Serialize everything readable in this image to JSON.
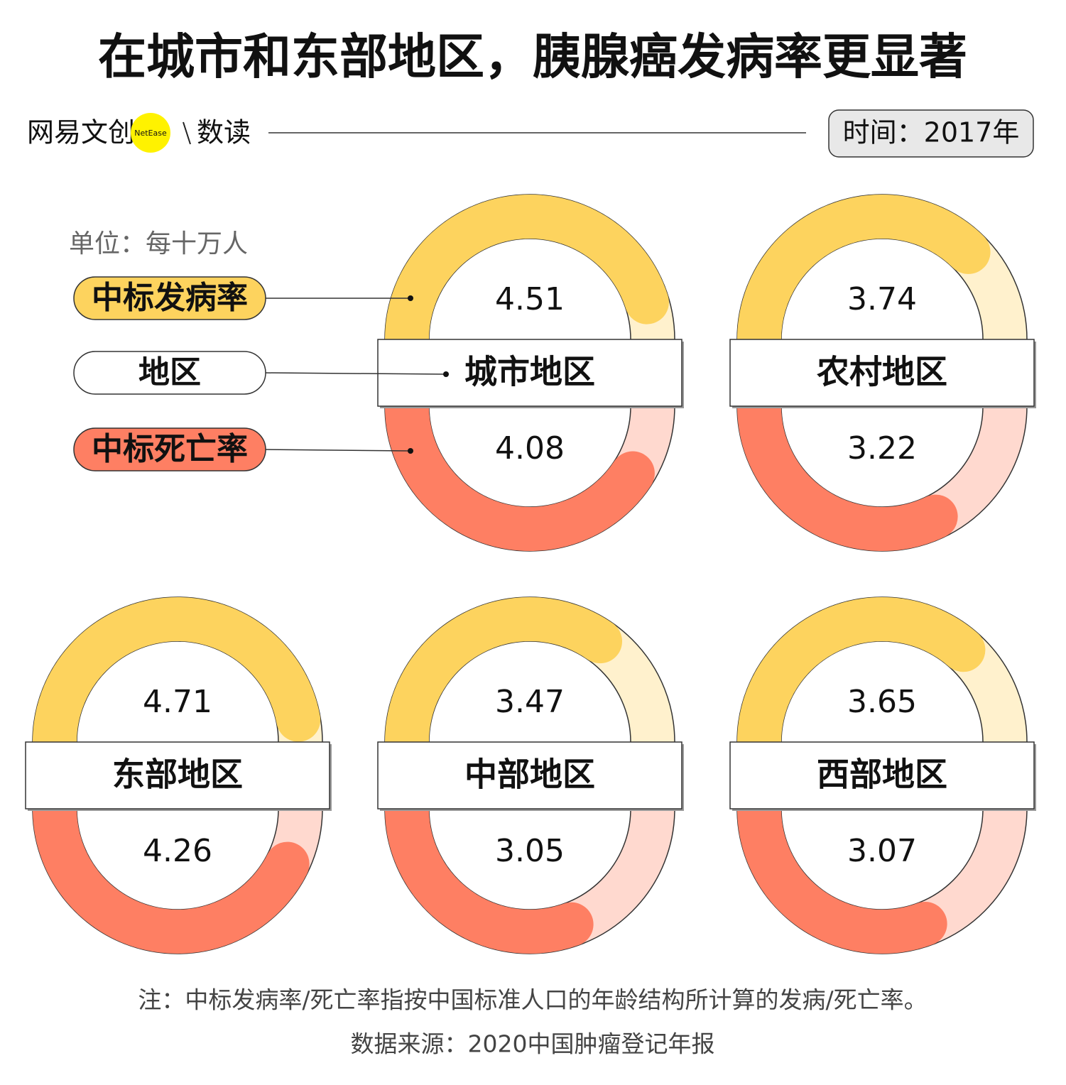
{
  "header": {
    "title": "在城市和东部地区，胰腺癌发病率更显著",
    "brand": "网易文创",
    "badge": "NetEase",
    "section": "数读",
    "time": "时间：2017年"
  },
  "unit": "单位：每十万人",
  "legend": [
    {
      "label": "中标发病率",
      "color": "#fdd35e"
    },
    {
      "label": "地区",
      "color": "#ffffff"
    },
    {
      "label": "中标死亡率",
      "color": "#fe7f63"
    }
  ],
  "chart_data": [
    {
      "type": "donut",
      "title": "城市地区",
      "values": [
        4.51,
        4.08
      ],
      "colors": [
        "#fdd35e",
        "#fe7f63"
      ],
      "track_colors": [
        "#fff1cd",
        "#ffd9cf"
      ],
      "ylim": [
        0,
        5
      ]
    },
    {
      "type": "donut",
      "title": "农村地区",
      "values": [
        3.74,
        3.22
      ],
      "colors": [
        "#fdd35e",
        "#fe7f63"
      ],
      "track_colors": [
        "#fff1cd",
        "#ffd9cf"
      ],
      "ylim": [
        0,
        5
      ]
    },
    {
      "type": "donut",
      "title": "东部地区",
      "values": [
        4.71,
        4.26
      ],
      "colors": [
        "#fdd35e",
        "#fe7f63"
      ],
      "track_colors": [
        "#fff1cd",
        "#ffd9cf"
      ],
      "ylim": [
        0,
        5
      ]
    },
    {
      "type": "donut",
      "title": "中部地区",
      "values": [
        3.47,
        3.05
      ],
      "colors": [
        "#fdd35e",
        "#fe7f63"
      ],
      "track_colors": [
        "#fff1cd",
        "#ffd9cf"
      ],
      "ylim": [
        0,
        5
      ]
    },
    {
      "type": "donut",
      "title": "西部地区",
      "values": [
        3.65,
        3.07
      ],
      "colors": [
        "#fdd35e",
        "#fe7f63"
      ],
      "track_colors": [
        "#fff1cd",
        "#ffd9cf"
      ],
      "ylim": [
        0,
        5
      ]
    }
  ],
  "note": "注：中标发病率/死亡率指按中国标准人口的年龄结构所计算的发病/死亡率。",
  "source": "数据来源：2020中国肿瘤登记年报"
}
